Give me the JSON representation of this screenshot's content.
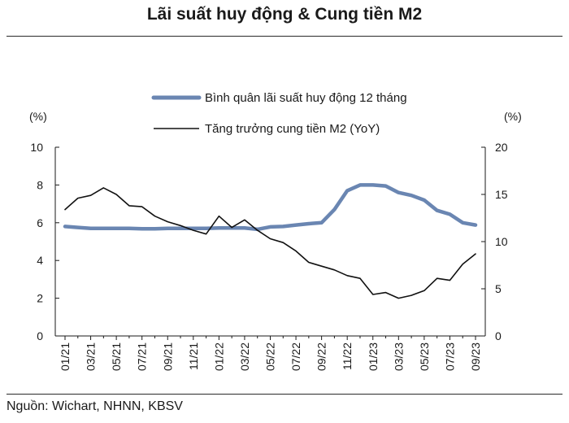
{
  "title": "Lãi suất huy động & Cung tiền M2",
  "source": "Nguồn: Wichart, NHNN, KBSV",
  "chart_data": {
    "type": "line",
    "left_unit": "(%)",
    "right_unit": "(%)",
    "left_ylim": [
      0,
      10
    ],
    "left_ticks": [
      "0",
      "2",
      "4",
      "6",
      "8",
      "10"
    ],
    "right_ylim": [
      0,
      20
    ],
    "right_ticks": [
      "0",
      "5",
      "10",
      "15",
      "20"
    ],
    "grid": false,
    "legend_position": "top-center",
    "x_ticks": [
      "01/21",
      "03/21",
      "05/21",
      "07/21",
      "09/21",
      "11/21",
      "01/22",
      "03/22",
      "05/22",
      "07/22",
      "09/22",
      "11/22",
      "01/23",
      "03/23",
      "05/23",
      "07/23",
      "09/23"
    ],
    "x": [
      "01/21",
      "02/21",
      "03/21",
      "04/21",
      "05/21",
      "06/21",
      "07/21",
      "08/21",
      "09/21",
      "10/21",
      "11/21",
      "12/21",
      "01/22",
      "02/22",
      "03/22",
      "04/22",
      "05/22",
      "06/22",
      "07/22",
      "08/22",
      "09/22",
      "10/22",
      "11/22",
      "12/22",
      "01/23",
      "02/23",
      "03/23",
      "04/23",
      "05/23",
      "06/23",
      "07/23",
      "08/23",
      "09/23"
    ],
    "series": [
      {
        "name": "Bình quân lãi suất huy động 12 tháng",
        "axis": "left",
        "color": "#6a86b2",
        "values": [
          5.8,
          5.75,
          5.7,
          5.7,
          5.7,
          5.7,
          5.68,
          5.68,
          5.7,
          5.7,
          5.7,
          5.7,
          5.72,
          5.72,
          5.72,
          5.65,
          5.78,
          5.8,
          5.88,
          5.95,
          6.0,
          6.7,
          7.7,
          8.0,
          8.0,
          7.95,
          7.6,
          7.45,
          7.2,
          6.65,
          6.45,
          6.0,
          5.88
        ]
      },
      {
        "name": "Tăng trưởng cung tiền M2 (YoY)",
        "axis": "right",
        "color": "#111111",
        "values": [
          13.4,
          14.6,
          14.9,
          15.7,
          15.0,
          13.8,
          13.7,
          12.7,
          12.1,
          11.7,
          11.2,
          10.8,
          12.7,
          11.5,
          12.3,
          11.2,
          10.3,
          9.9,
          9.0,
          7.8,
          7.4,
          7.0,
          6.4,
          6.1,
          4.4,
          4.6,
          4.0,
          4.3,
          4.8,
          6.1,
          5.9,
          7.6,
          8.7
        ]
      }
    ]
  }
}
